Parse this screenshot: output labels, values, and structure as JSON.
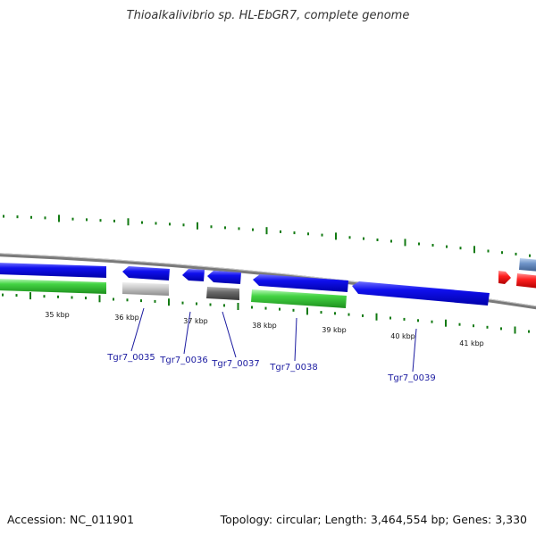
{
  "title": "Thioalkalivibrio sp. HL-EbGR7, complete genome",
  "footer": {
    "accession": "Accession: NC_011901",
    "summary": "Topology: circular; Length: 3,464,554 bp; Genes: 3,330"
  },
  "scale_labels": [
    "35 kbp",
    "36 kbp",
    "37 kbp",
    "38 kbp",
    "39 kbp",
    "40 kbp",
    "41 kbp"
  ],
  "genes": [
    {
      "locus": "Tgr7_0035",
      "color": "#c8c8c8"
    },
    {
      "locus": "Tgr7_0036",
      "color": "#0000e0"
    },
    {
      "locus": "Tgr7_0037",
      "color": "#606060"
    },
    {
      "locus": "Tgr7_0038",
      "color": "#3cc43c"
    },
    {
      "locus": "Tgr7_0039",
      "color": "#0000e0"
    }
  ],
  "colors": {
    "forward_gene": "#0000e0",
    "reverse_gene": "#0000e0",
    "rna_gene": "#3cc43c",
    "pseudo_gene": "#c8c8c8",
    "other_gene": "#606060",
    "highlight_red": "#ff1a1a",
    "highlight_steel": "#6a8fc8",
    "tick": "#127a12",
    "backbone": "#7a7a7a",
    "label": "#1a1aa0"
  }
}
